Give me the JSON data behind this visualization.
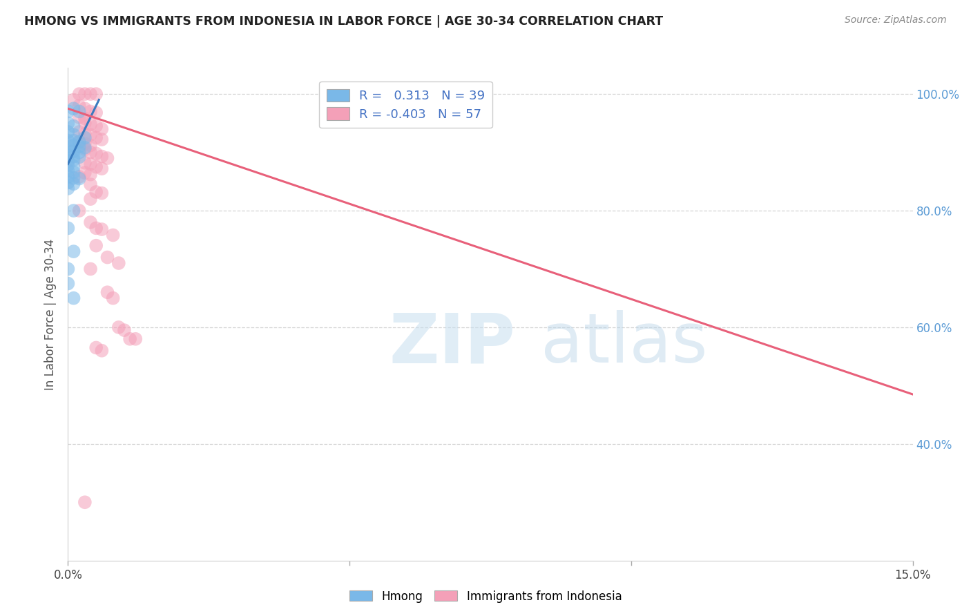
{
  "title": "HMONG VS IMMIGRANTS FROM INDONESIA IN LABOR FORCE | AGE 30-34 CORRELATION CHART",
  "source": "Source: ZipAtlas.com",
  "ylabel": "In Labor Force | Age 30-34",
  "xmin": 0.0,
  "xmax": 0.15,
  "ymin": 0.2,
  "ymax": 1.045,
  "blue_color": "#7ab8e8",
  "pink_color": "#f4a0b8",
  "blue_line_color": "#3a7bbf",
  "pink_line_color": "#e8607a",
  "blue_scatter": [
    [
      0.0,
      0.97
    ],
    [
      0.001,
      0.975
    ],
    [
      0.002,
      0.97
    ],
    [
      0.0,
      0.95
    ],
    [
      0.001,
      0.945
    ],
    [
      0.0,
      0.935
    ],
    [
      0.001,
      0.93
    ],
    [
      0.003,
      0.925
    ],
    [
      0.0,
      0.92
    ],
    [
      0.001,
      0.92
    ],
    [
      0.002,
      0.918
    ],
    [
      0.0,
      0.91
    ],
    [
      0.001,
      0.912
    ],
    [
      0.002,
      0.91
    ],
    [
      0.003,
      0.908
    ],
    [
      0.0,
      0.9
    ],
    [
      0.001,
      0.902
    ],
    [
      0.002,
      0.9
    ],
    [
      0.0,
      0.895
    ],
    [
      0.001,
      0.893
    ],
    [
      0.002,
      0.892
    ],
    [
      0.0,
      0.885
    ],
    [
      0.001,
      0.887
    ],
    [
      0.0,
      0.878
    ],
    [
      0.001,
      0.876
    ],
    [
      0.0,
      0.868
    ],
    [
      0.001,
      0.866
    ],
    [
      0.0,
      0.858
    ],
    [
      0.001,
      0.856
    ],
    [
      0.002,
      0.855
    ],
    [
      0.0,
      0.848
    ],
    [
      0.001,
      0.846
    ],
    [
      0.0,
      0.838
    ],
    [
      0.001,
      0.8
    ],
    [
      0.0,
      0.77
    ],
    [
      0.001,
      0.73
    ],
    [
      0.0,
      0.7
    ],
    [
      0.0,
      0.675
    ],
    [
      0.001,
      0.65
    ]
  ],
  "pink_scatter": [
    [
      0.002,
      1.0
    ],
    [
      0.003,
      1.0
    ],
    [
      0.004,
      1.0
    ],
    [
      0.005,
      1.0
    ],
    [
      0.001,
      0.99
    ],
    [
      0.002,
      0.98
    ],
    [
      0.003,
      0.975
    ],
    [
      0.004,
      0.97
    ],
    [
      0.005,
      0.968
    ],
    [
      0.002,
      0.96
    ],
    [
      0.003,
      0.958
    ],
    [
      0.003,
      0.95
    ],
    [
      0.004,
      0.948
    ],
    [
      0.005,
      0.945
    ],
    [
      0.006,
      0.94
    ],
    [
      0.002,
      0.935
    ],
    [
      0.003,
      0.932
    ],
    [
      0.004,
      0.93
    ],
    [
      0.005,
      0.925
    ],
    [
      0.006,
      0.922
    ],
    [
      0.002,
      0.918
    ],
    [
      0.003,
      0.915
    ],
    [
      0.004,
      0.912
    ],
    [
      0.003,
      0.905
    ],
    [
      0.004,
      0.9
    ],
    [
      0.005,
      0.898
    ],
    [
      0.006,
      0.893
    ],
    [
      0.007,
      0.89
    ],
    [
      0.003,
      0.882
    ],
    [
      0.004,
      0.88
    ],
    [
      0.005,
      0.875
    ],
    [
      0.006,
      0.872
    ],
    [
      0.003,
      0.865
    ],
    [
      0.004,
      0.862
    ],
    [
      0.002,
      0.858
    ],
    [
      0.004,
      0.845
    ],
    [
      0.005,
      0.832
    ],
    [
      0.006,
      0.83
    ],
    [
      0.004,
      0.82
    ],
    [
      0.002,
      0.8
    ],
    [
      0.004,
      0.78
    ],
    [
      0.005,
      0.77
    ],
    [
      0.006,
      0.768
    ],
    [
      0.008,
      0.758
    ],
    [
      0.005,
      0.74
    ],
    [
      0.007,
      0.72
    ],
    [
      0.009,
      0.71
    ],
    [
      0.004,
      0.7
    ],
    [
      0.007,
      0.66
    ],
    [
      0.008,
      0.65
    ],
    [
      0.009,
      0.6
    ],
    [
      0.01,
      0.595
    ],
    [
      0.011,
      0.58
    ],
    [
      0.005,
      0.565
    ],
    [
      0.006,
      0.56
    ],
    [
      0.012,
      0.58
    ],
    [
      0.003,
      0.3
    ]
  ],
  "blue_trend_x": [
    0.0,
    0.0055
  ],
  "blue_trend_y": [
    0.88,
    0.99
  ],
  "pink_trend_x": [
    0.0,
    0.15
  ],
  "pink_trend_y": [
    0.975,
    0.485
  ],
  "grid_color": "#d0d0d0",
  "background_color": "#ffffff",
  "right_axis_color": "#5b9bd5",
  "legend_color": "#4472c4"
}
